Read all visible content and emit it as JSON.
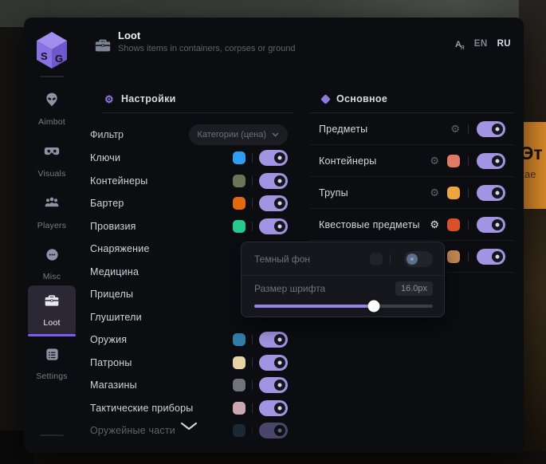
{
  "icons": {
    "gear": "⚙",
    "translate_a": "A",
    "translate_ya": "я"
  },
  "logo": {
    "left_letter": "S",
    "right_letter": "G"
  },
  "header": {
    "title": "Loot",
    "subtitle": "Shows items in containers, corpses or ground",
    "languages": [
      {
        "code": "EN",
        "active": false
      },
      {
        "code": "RU",
        "active": true
      }
    ]
  },
  "sidebar": {
    "items": [
      {
        "label": "Aimbot",
        "icon": "alien-icon",
        "selected": false
      },
      {
        "label": "Visuals",
        "icon": "goggles-icon",
        "selected": false
      },
      {
        "label": "Players",
        "icon": "players-icon",
        "selected": false
      },
      {
        "label": "Misc",
        "icon": "misc-icon",
        "selected": false
      },
      {
        "label": "Loot",
        "icon": "briefcase-icon",
        "selected": true
      },
      {
        "label": "Settings",
        "icon": "settings-icon",
        "selected": false
      }
    ]
  },
  "settings_panel": {
    "title": "Настройки",
    "filter": {
      "label": "Фильтр",
      "value": "Категории (цена)"
    },
    "items": [
      {
        "label": "Ключи",
        "color": "#2f9df2",
        "enabled": true
      },
      {
        "label": "Контейнеры",
        "color": "#6e7258",
        "enabled": true
      },
      {
        "label": "Бартер",
        "color": "#e26a0e",
        "enabled": true
      },
      {
        "label": "Провизия",
        "color": "#27c98f",
        "enabled": true
      },
      {
        "label": "Снаряжение"
      },
      {
        "label": "Медицина"
      },
      {
        "label": "Прицелы"
      },
      {
        "label": "Глушители"
      },
      {
        "label": "Оружия",
        "color": "#2f81ab",
        "enabled": true
      },
      {
        "label": "Патроны",
        "color": "#e7d3a4",
        "enabled": true
      },
      {
        "label": "Магазины",
        "color": "#73747a",
        "enabled": true
      },
      {
        "label": "Тактические приборы",
        "color": "#c9a8b1",
        "enabled": true
      },
      {
        "label": "Оружейные части",
        "color": "#2d4f66",
        "enabled": true
      }
    ]
  },
  "main_panel": {
    "title": "Основное",
    "items": [
      {
        "label": "Предметы",
        "enabled": true
      },
      {
        "label": "Контейнеры",
        "color": "#e07a69",
        "enabled": true
      },
      {
        "label": "Трупы",
        "color": "#eca63e",
        "enabled": true
      },
      {
        "label": "Квестовые предметы",
        "color": "#d8512a",
        "enabled": true
      },
      {
        "color": "#c68a55",
        "enabled": true
      }
    ]
  },
  "popup": {
    "dark_bg": {
      "label": "Темный фон",
      "enabled": false
    },
    "font_size": {
      "label": "Размер шрифта",
      "value": "16.0px",
      "slider_percent": 67
    }
  },
  "background_banner": {
    "line1": "Эт",
    "line2": "кае"
  },
  "colors": {
    "accent": "#8f7ae0",
    "toggle_on": "#a393e3",
    "banner": "#d9882a"
  }
}
